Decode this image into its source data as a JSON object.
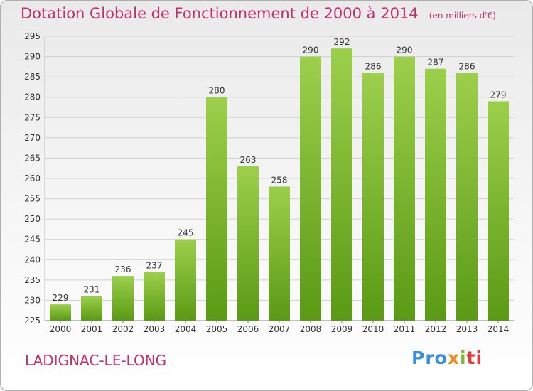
{
  "title": "Dotation Globale de Fonctionnement de 2000 à 2014",
  "unit_note": "(en milliers d'€)",
  "town": "LADIGNAC-LE-LONG",
  "logo": {
    "p1": "Pro",
    "p2": "x",
    "p3": "i",
    "p4": "ti"
  },
  "colors": {
    "title": "#c0306c",
    "bar_top": "#9ccf4c",
    "bar_bottom": "#5a9a14",
    "grid": "#cfcfcf"
  },
  "chart_data": {
    "type": "bar",
    "title": "Dotation Globale de Fonctionnement de 2000 à 2014",
    "subtitle": "(en milliers d'€)",
    "categories": [
      "2000",
      "2001",
      "2002",
      "2003",
      "2004",
      "2005",
      "2006",
      "2007",
      "2008",
      "2009",
      "2010",
      "2011",
      "2012",
      "2013",
      "2014"
    ],
    "values": [
      229,
      231,
      236,
      237,
      245,
      280,
      263,
      258,
      290,
      292,
      286,
      290,
      287,
      286,
      279
    ],
    "ylim": [
      225,
      295
    ],
    "yticks": [
      225,
      230,
      235,
      240,
      245,
      250,
      255,
      260,
      265,
      270,
      275,
      280,
      285,
      290,
      295
    ],
    "grid": true,
    "data_labels": true
  }
}
